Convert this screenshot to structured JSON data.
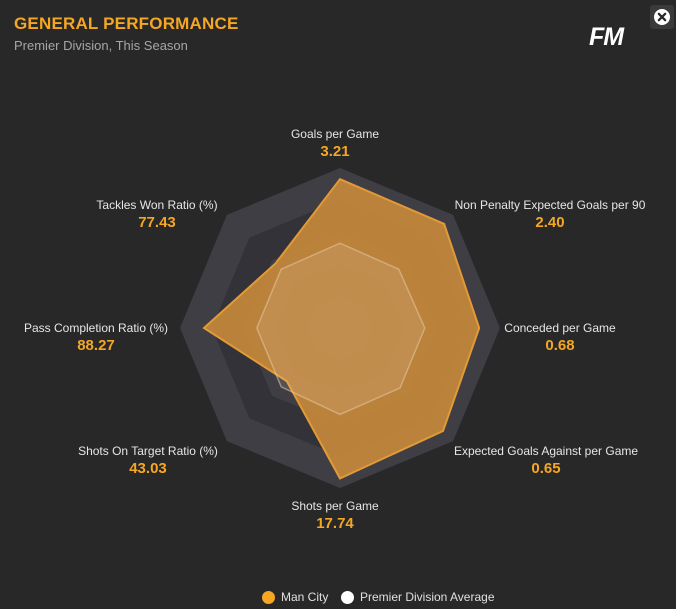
{
  "header": {
    "title": "GENERAL PERFORMANCE",
    "subtitle": "Premier Division, This Season",
    "logo_text": "FM",
    "close_icon": "close-x-circle-icon"
  },
  "colors": {
    "accent": "#f5a623",
    "team_fill": "#c8893a",
    "team_stroke": "#e29a36",
    "average_stroke": "#e8c9a0",
    "ring_light": "#3f3e45",
    "ring_dark": "#333238",
    "background": "#282828"
  },
  "chart_data": {
    "type": "radar",
    "title": "GENERAL PERFORMANCE",
    "subtitle": "Premier Division, This Season",
    "metrics": [
      "Goals per Game",
      "Non Penalty Expected Goals per 90",
      "Conceded per Game",
      "Expected Goals Against per Game",
      "Shots per Game",
      "Shots On Target Ratio (%)",
      "Pass Completion Ratio (%)",
      "Tackles Won Ratio (%)"
    ],
    "display_values": [
      "3.21",
      "2.40",
      "0.68",
      "0.65",
      "17.74",
      "43.03",
      "88.27",
      "77.43"
    ],
    "series": [
      {
        "name": "Man City",
        "color": "#f5a623",
        "normalized": [
          0.93,
          0.92,
          0.87,
          0.91,
          0.94,
          0.47,
          0.85,
          0.57
        ]
      },
      {
        "name": "Premier Division Average",
        "color": "#ffffff",
        "normalized": [
          0.53,
          0.52,
          0.53,
          0.53,
          0.54,
          0.52,
          0.52,
          0.52
        ]
      }
    ],
    "rings": 5,
    "legend_position": "bottom-center"
  },
  "legend": {
    "items": [
      {
        "label": "Man City",
        "color": "#f5a623"
      },
      {
        "label": "Premier Division Average",
        "color": "#ffffff"
      }
    ]
  }
}
